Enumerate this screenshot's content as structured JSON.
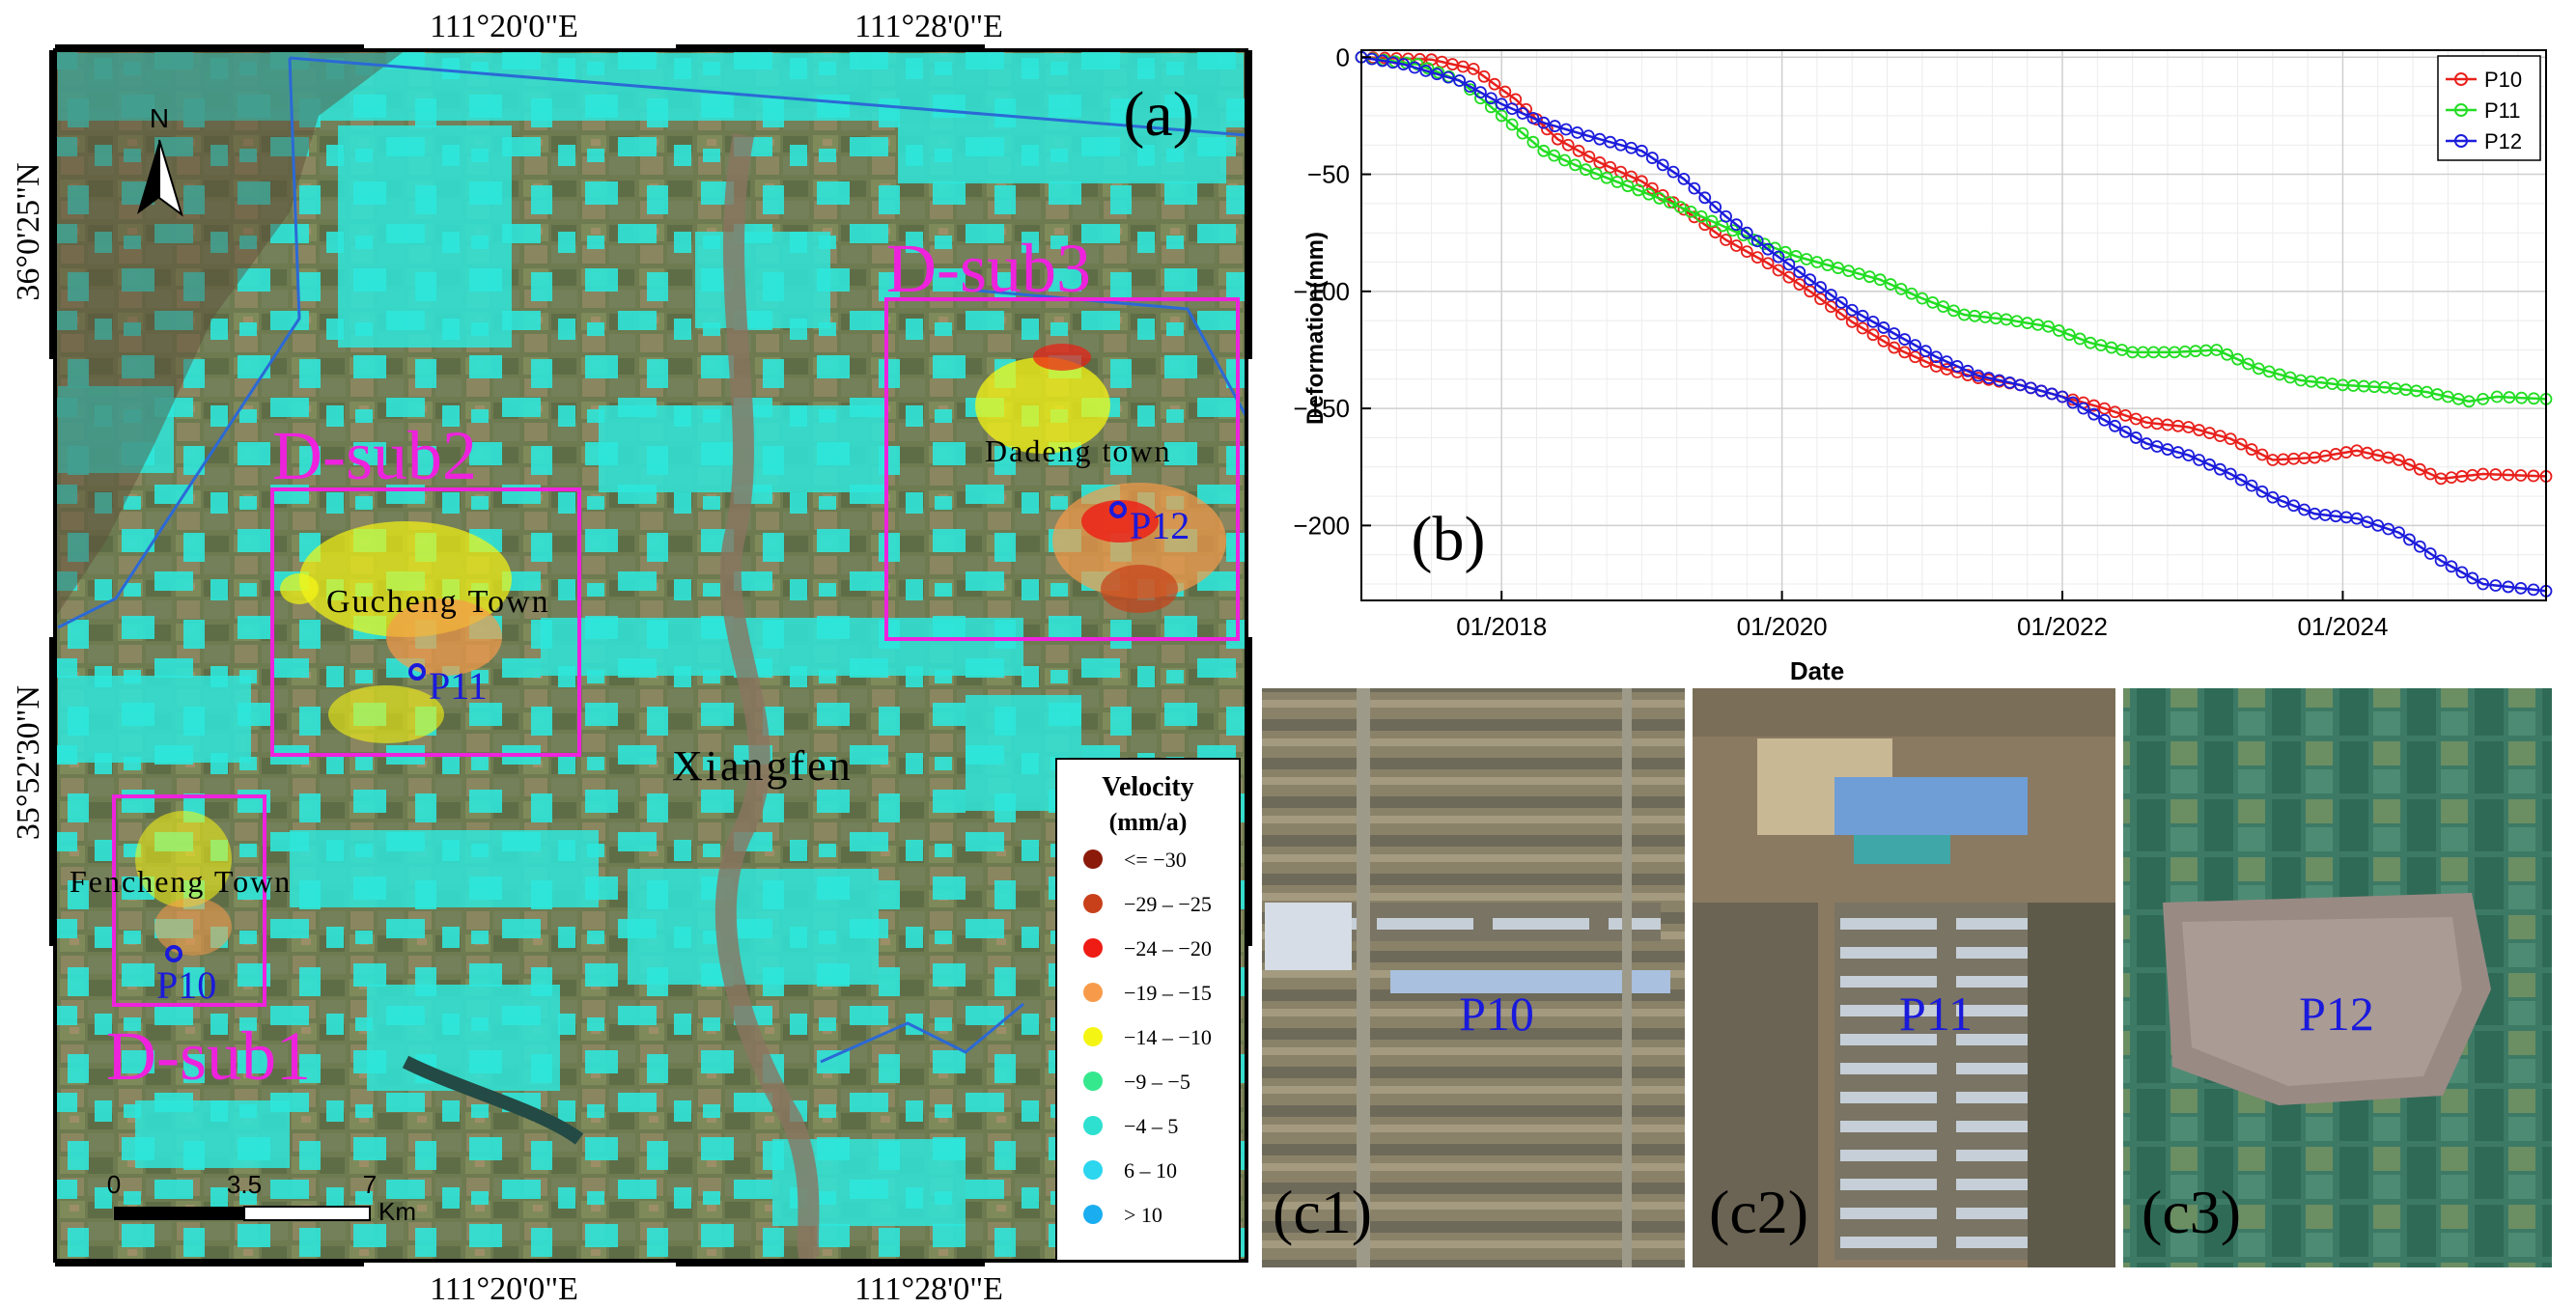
{
  "map": {
    "panel_label": "(a)",
    "north_label": "N",
    "coords_top": [
      "111°20'0\"E",
      "111°28'0\"E"
    ],
    "coords_bottom": [
      "111°20'0\"E",
      "111°28'0\"E"
    ],
    "coords_left": [
      "36°0'25\"N",
      "35°52'30\"N"
    ],
    "subregions": [
      {
        "label": "D-sub1",
        "town": "Fencheng Town",
        "point": "P10"
      },
      {
        "label": "D-sub2",
        "town": "Gucheng Town",
        "point": "P11"
      },
      {
        "label": "D-sub3",
        "town": "Dadeng town",
        "point": "P12"
      }
    ],
    "city_label": "Xiangfen",
    "scale": {
      "ticks": [
        "0",
        "3.5",
        "7"
      ],
      "unit": "Km"
    },
    "legend": {
      "title": "Velocity",
      "unit": "(mm/a)",
      "entries": [
        {
          "label": "<= −30",
          "color": "#8b1a0a"
        },
        {
          "label": "−29 – −25",
          "color": "#c8401a"
        },
        {
          "label": "−24 – −20",
          "color": "#ee1c14"
        },
        {
          "label": "−19 – −15",
          "color": "#f79b4a"
        },
        {
          "label": "−14 – −10",
          "color": "#f5f513"
        },
        {
          "label": "−9 – −5",
          "color": "#35e88e"
        },
        {
          "label": "−4 – 5",
          "color": "#2de0d0"
        },
        {
          "label": "6 – 10",
          "color": "#2bd6ee"
        },
        {
          "label": "> 10",
          "color": "#1aaef0"
        }
      ]
    },
    "colors": {
      "cyan": "#2ee6da",
      "box": "#ee22dd",
      "point": "#1a1adc",
      "sub_label": "#ee22dd"
    }
  },
  "chart_data": {
    "type": "line",
    "panel_label": "(b)",
    "title": "",
    "xlabel": "Date",
    "ylabel": "Deformation(mm)",
    "xlim": [
      2017.0,
      2025.45
    ],
    "ylim": [
      -232,
      3
    ],
    "x_ticks": [
      2018,
      2020,
      2022,
      2024
    ],
    "x_tick_labels": [
      "01/2018",
      "01/2020",
      "01/2022",
      "01/2024"
    ],
    "y_ticks": [
      0,
      -50,
      -100,
      -150,
      -200
    ],
    "y_tick_labels": [
      "0",
      "−50",
      "−100",
      "−150",
      "−200"
    ],
    "legend_position": "top-right",
    "series": [
      {
        "name": "P10",
        "color": "#e8201c",
        "points": [
          [
            2017.0,
            0
          ],
          [
            2017.5,
            -1
          ],
          [
            2017.8,
            -5
          ],
          [
            2018.1,
            -18
          ],
          [
            2018.4,
            -35
          ],
          [
            2018.7,
            -45
          ],
          [
            2019.0,
            -53
          ],
          [
            2019.3,
            -65
          ],
          [
            2019.6,
            -78
          ],
          [
            2019.9,
            -88
          ],
          [
            2020.2,
            -100
          ],
          [
            2020.5,
            -113
          ],
          [
            2020.8,
            -124
          ],
          [
            2021.1,
            -132
          ],
          [
            2021.4,
            -137
          ],
          [
            2021.7,
            -140
          ],
          [
            2022.0,
            -145
          ],
          [
            2022.3,
            -150
          ],
          [
            2022.6,
            -156
          ],
          [
            2022.9,
            -158
          ],
          [
            2023.2,
            -163
          ],
          [
            2023.5,
            -172
          ],
          [
            2023.8,
            -171
          ],
          [
            2024.1,
            -168
          ],
          [
            2024.4,
            -172
          ],
          [
            2024.7,
            -180
          ],
          [
            2025.0,
            -178
          ],
          [
            2025.45,
            -179
          ]
        ]
      },
      {
        "name": "P11",
        "color": "#22dd22",
        "points": [
          [
            2017.0,
            0
          ],
          [
            2017.4,
            -3
          ],
          [
            2017.7,
            -10
          ],
          [
            2018.0,
            -25
          ],
          [
            2018.3,
            -40
          ],
          [
            2018.6,
            -48
          ],
          [
            2018.9,
            -55
          ],
          [
            2019.2,
            -62
          ],
          [
            2019.5,
            -70
          ],
          [
            2019.8,
            -78
          ],
          [
            2020.1,
            -85
          ],
          [
            2020.4,
            -90
          ],
          [
            2020.7,
            -95
          ],
          [
            2021.0,
            -103
          ],
          [
            2021.3,
            -110
          ],
          [
            2021.6,
            -112
          ],
          [
            2021.9,
            -115
          ],
          [
            2022.2,
            -122
          ],
          [
            2022.5,
            -126
          ],
          [
            2022.8,
            -126
          ],
          [
            2023.1,
            -125
          ],
          [
            2023.4,
            -133
          ],
          [
            2023.7,
            -138
          ],
          [
            2024.0,
            -140
          ],
          [
            2024.3,
            -141
          ],
          [
            2024.6,
            -143
          ],
          [
            2024.9,
            -147
          ],
          [
            2025.1,
            -145
          ],
          [
            2025.45,
            -146
          ]
        ]
      },
      {
        "name": "P12",
        "color": "#1c1cdc",
        "points": [
          [
            2017.0,
            0
          ],
          [
            2017.3,
            -3
          ],
          [
            2017.7,
            -10
          ],
          [
            2018.0,
            -20
          ],
          [
            2018.3,
            -28
          ],
          [
            2018.7,
            -35
          ],
          [
            2019.0,
            -40
          ],
          [
            2019.3,
            -52
          ],
          [
            2019.6,
            -68
          ],
          [
            2019.9,
            -82
          ],
          [
            2020.2,
            -95
          ],
          [
            2020.5,
            -108
          ],
          [
            2020.8,
            -118
          ],
          [
            2021.1,
            -128
          ],
          [
            2021.4,
            -136
          ],
          [
            2021.7,
            -140
          ],
          [
            2022.0,
            -145
          ],
          [
            2022.3,
            -155
          ],
          [
            2022.6,
            -165
          ],
          [
            2022.9,
            -170
          ],
          [
            2023.2,
            -178
          ],
          [
            2023.5,
            -188
          ],
          [
            2023.8,
            -195
          ],
          [
            2024.1,
            -197
          ],
          [
            2024.4,
            -203
          ],
          [
            2024.7,
            -215
          ],
          [
            2025.0,
            -225
          ],
          [
            2025.45,
            -228
          ]
        ]
      }
    ]
  },
  "photos": [
    {
      "label": "P10",
      "panel": "(c1)"
    },
    {
      "label": "P11",
      "panel": "(c2)"
    },
    {
      "label": "P12",
      "panel": "(c3)"
    }
  ]
}
